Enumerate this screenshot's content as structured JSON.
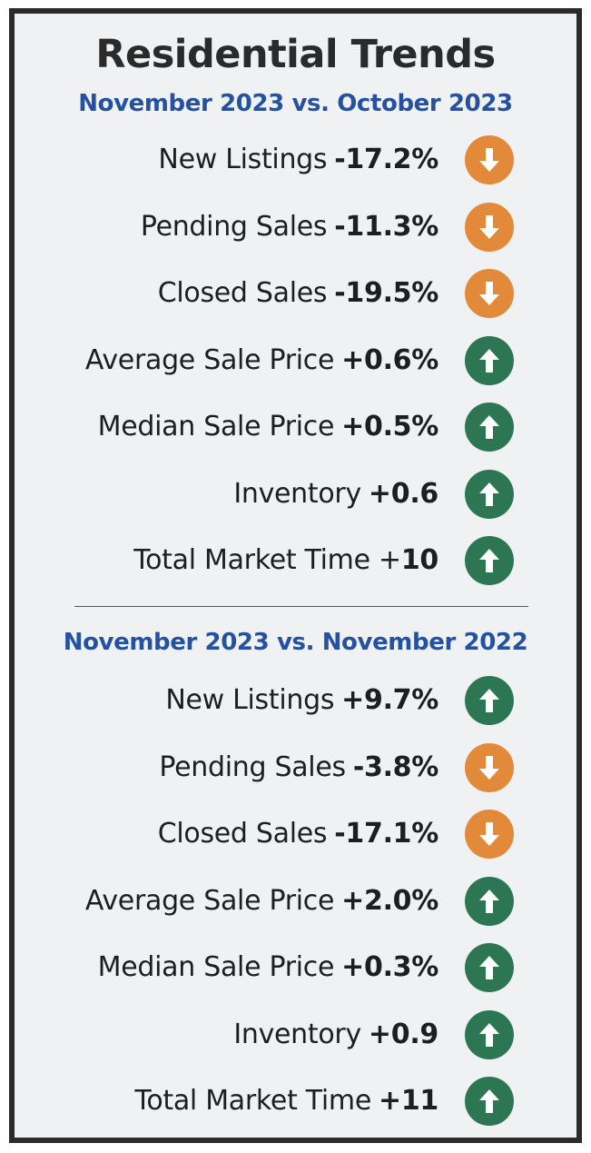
{
  "title": "Residential Trends",
  "colors": {
    "up": "#2c7653",
    "down": "#e3893a",
    "subtitle": "#2451a1"
  },
  "sections": [
    {
      "heading": "November 2023 vs. October 2023",
      "rows": [
        {
          "label": "New Listings",
          "value": "-17.2%",
          "direction": "down",
          "icon": "arrow-down-icon"
        },
        {
          "label": "Pending Sales",
          "value": "-11.3%",
          "direction": "down",
          "icon": "arrow-down-icon"
        },
        {
          "label": "Closed Sales",
          "value": "-19.5%",
          "direction": "down",
          "icon": "arrow-down-icon"
        },
        {
          "label": "Average Sale Price",
          "value": "+0.6%",
          "direction": "up",
          "icon": "arrow-up-icon"
        },
        {
          "label": "Median Sale Price",
          "value": "+0.5%",
          "direction": "up",
          "icon": "arrow-up-icon"
        },
        {
          "label": "Inventory",
          "value": "+0.6",
          "direction": "up",
          "icon": "arrow-up-icon"
        },
        {
          "label": "Total Market Time +",
          "value": "10",
          "direction": "up",
          "icon": "arrow-up-icon"
        }
      ]
    },
    {
      "heading": "November 2023 vs. November 2022",
      "rows": [
        {
          "label": "New Listings",
          "value": "+9.7%",
          "direction": "up",
          "icon": "arrow-up-icon"
        },
        {
          "label": "Pending Sales",
          "value": "-3.8%",
          "direction": "down",
          "icon": "arrow-down-icon"
        },
        {
          "label": "Closed Sales",
          "value": "-17.1%",
          "direction": "down",
          "icon": "arrow-down-icon"
        },
        {
          "label": "Average Sale Price",
          "value": "+2.0%",
          "direction": "up",
          "icon": "arrow-up-icon"
        },
        {
          "label": "Median Sale Price",
          "value": "+0.3%",
          "direction": "up",
          "icon": "arrow-up-icon"
        },
        {
          "label": "Inventory",
          "value": "+0.9",
          "direction": "up",
          "icon": "arrow-up-icon"
        },
        {
          "label": "Total Market Time",
          "value": "+11",
          "direction": "up",
          "icon": "arrow-up-icon"
        }
      ]
    }
  ]
}
